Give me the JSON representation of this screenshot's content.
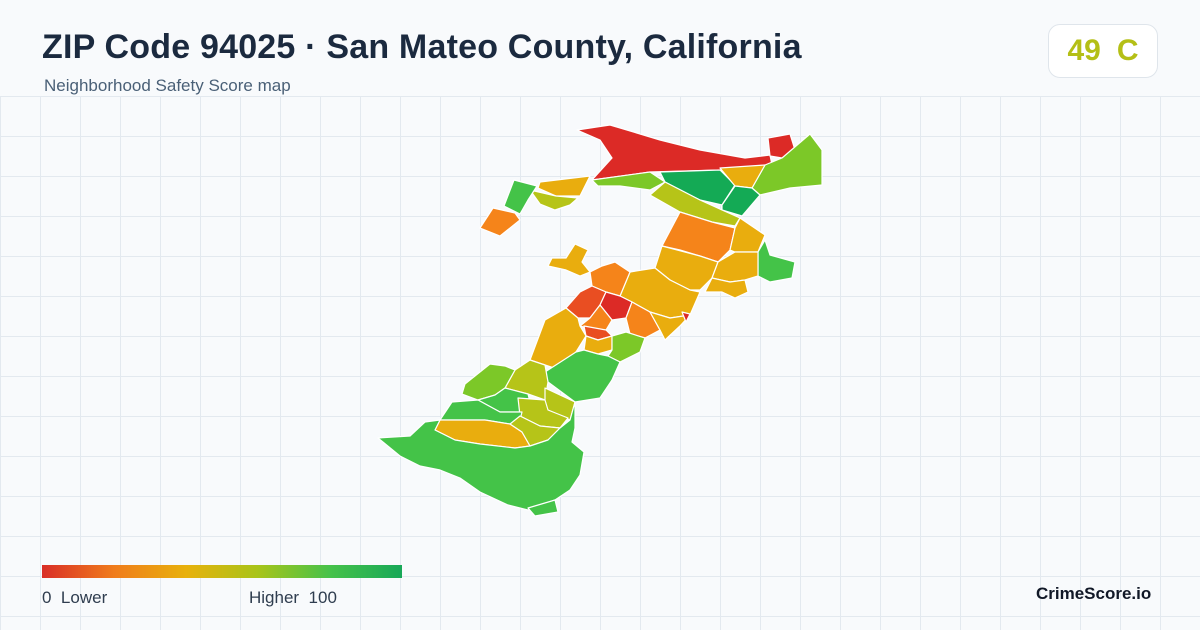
{
  "header": {
    "title": "ZIP Code 94025 · San Mateo County, California",
    "subtitle": "Neighborhood Safety Score map"
  },
  "score": {
    "value": "49",
    "grade": "C",
    "color": "#b4bf16"
  },
  "legend": {
    "min_label": "0",
    "low_label": "Lower",
    "high_label": "Higher",
    "max_label": "100",
    "gradient_colors": [
      "#d92e27",
      "#f07c1c",
      "#e8b10c",
      "#a8c419",
      "#46c24a",
      "#18a858"
    ]
  },
  "brand": {
    "name": "CrimeScore.io"
  },
  "colors": {
    "red": "#dc2a26",
    "red_orange": "#e94e22",
    "orange": "#f5841a",
    "amber": "#e9ad0e",
    "yellow_green": "#b6c418",
    "light_green": "#7cc828",
    "green": "#44c348",
    "dark_green": "#14aa55"
  }
}
